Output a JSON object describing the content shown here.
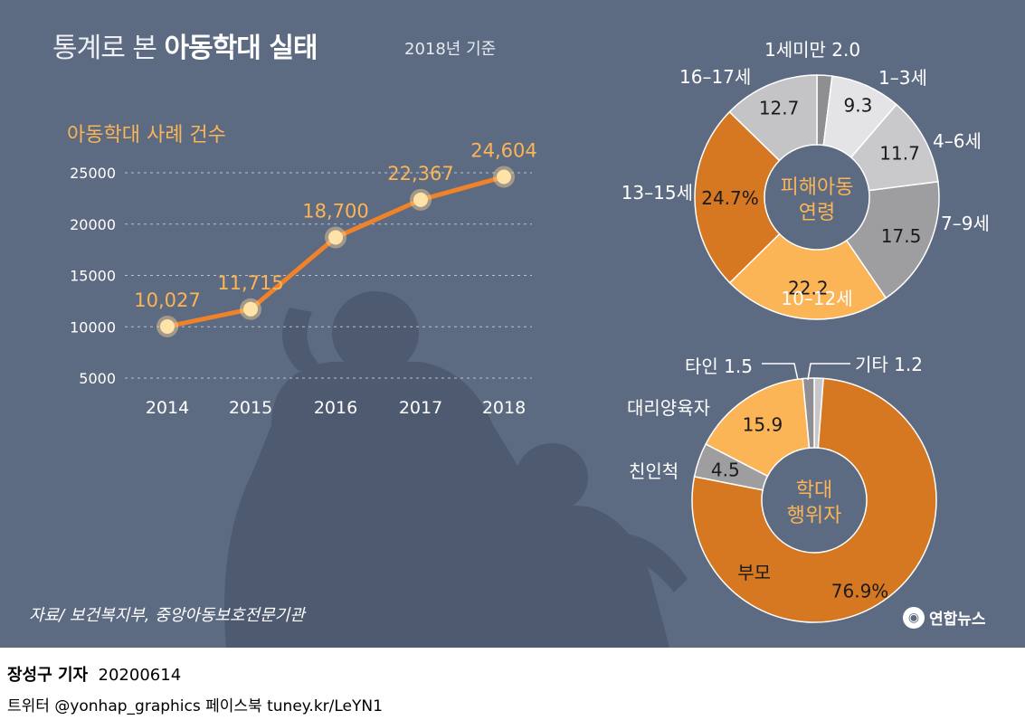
{
  "header": {
    "title_light": "통계로 본",
    "title_bold": "아동학대 실태",
    "subtitle": "2018년 기준"
  },
  "chart_data": [
    {
      "type": "line",
      "title": "아동학대 사례 건수",
      "categories": [
        "2014",
        "2015",
        "2016",
        "2017",
        "2018"
      ],
      "values": [
        10027,
        11715,
        18700,
        22367,
        24604
      ],
      "value_labels": [
        "10,027",
        "11,715",
        "18,700",
        "22,367",
        "24,604"
      ],
      "ylim": [
        5000,
        25000
      ],
      "yticks": [
        5000,
        10000,
        15000,
        20000,
        25000
      ],
      "grid": true,
      "color": "#f0822a"
    },
    {
      "type": "pie",
      "title": "피해아동 연령",
      "center_label": [
        "피해아동",
        "연령"
      ],
      "unit": "%",
      "slices": [
        {
          "name": "1세미만",
          "value": 2.0,
          "label": "2.0",
          "color": "#8f8f93"
        },
        {
          "name": "1–3세",
          "value": 9.3,
          "label": "9.3",
          "color": "#e4e4e6"
        },
        {
          "name": "4–6세",
          "value": 11.7,
          "label": "11.7",
          "color": "#c9c9cc"
        },
        {
          "name": "7–9세",
          "value": 17.5,
          "label": "17.5",
          "color": "#9e9ea1"
        },
        {
          "name": "10–12세",
          "value": 22.2,
          "label": "22.2",
          "color": "#fbb456"
        },
        {
          "name": "13–15세",
          "value": 24.7,
          "label": "24.7%",
          "color": "#d67822"
        },
        {
          "name": "16–17세",
          "value": 12.7,
          "label": "12.7",
          "color": "#c4c4c7"
        }
      ]
    },
    {
      "type": "pie",
      "title": "학대 행위자",
      "center_label": [
        "학대",
        "행위자"
      ],
      "unit": "%",
      "slices": [
        {
          "name": "기타",
          "value": 1.2,
          "label": "1.2",
          "color": "#c7c7ca"
        },
        {
          "name": "부모",
          "value": 76.9,
          "label": "76.9%",
          "color": "#d67822"
        },
        {
          "name": "친인척",
          "value": 4.5,
          "label": "4.5",
          "color": "#9e9ea1"
        },
        {
          "name": "대리양육자",
          "value": 15.9,
          "label": "15.9",
          "color": "#fbb456"
        },
        {
          "name": "타인",
          "value": 1.5,
          "label": "1.5",
          "color": "#8f8f93"
        }
      ]
    }
  ],
  "footer": {
    "source": "자료/ 보건복지부, 중앙아동보호전문기관",
    "logo_text": "연합뉴스",
    "reporter_name": "장성구 기자",
    "reporter_date": "20200614",
    "social": "트위터 @yonhap_graphics  페이스북 tuney.kr/LeYN1"
  }
}
